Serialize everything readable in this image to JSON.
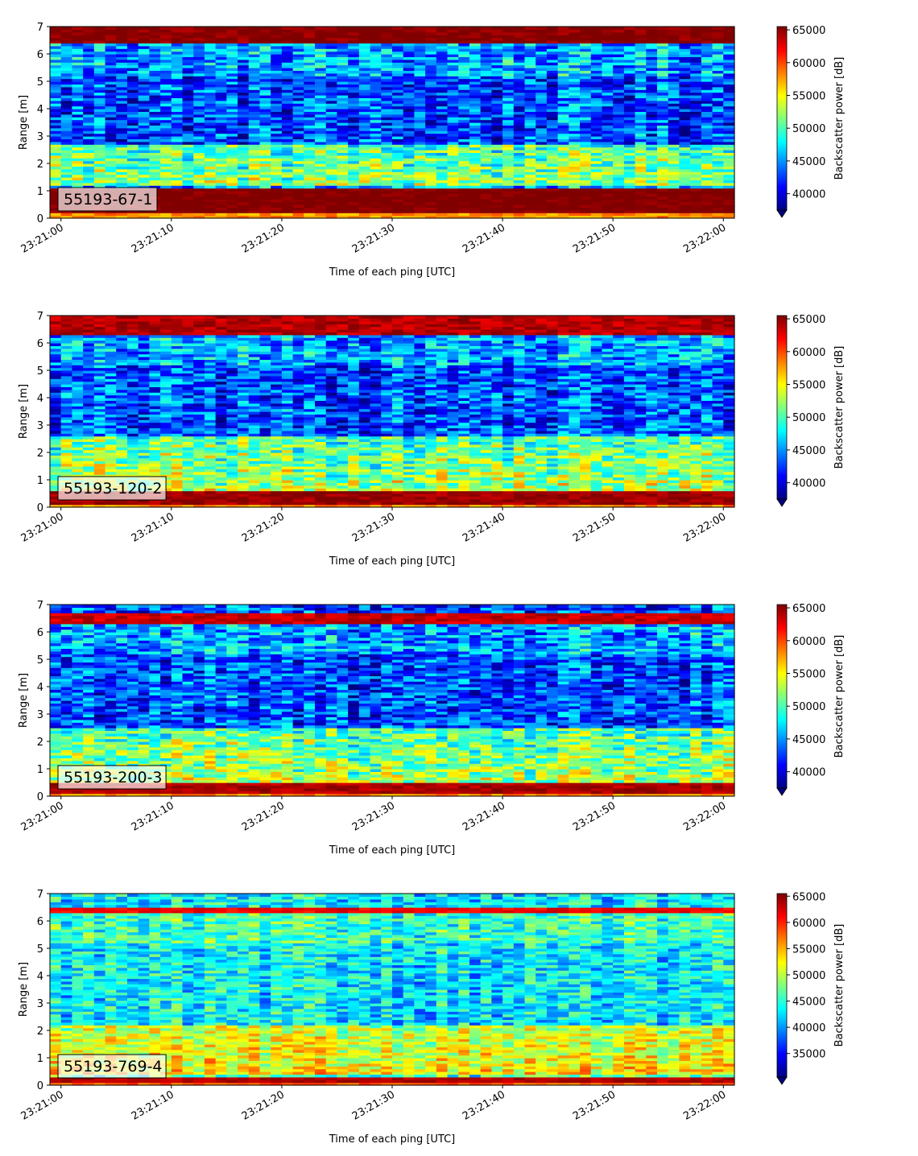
{
  "chart_data": [
    {
      "type": "heatmap",
      "panel_label": "55193-67-1",
      "xlabel": "Time of each ping [UTC]",
      "ylabel": "Range [m]",
      "x_ticks": [
        "23:21:00",
        "23:21:10",
        "23:21:20",
        "23:21:30",
        "23:21:40",
        "23:21:50",
        "23:22:00"
      ],
      "x_range_seconds": [
        -1,
        61
      ],
      "ylim": [
        0,
        7
      ],
      "y_ticks": [
        0,
        1,
        2,
        3,
        4,
        5,
        6,
        7
      ],
      "colorbar": {
        "label": "Backscatter power [dB]",
        "ticks": [
          40000,
          45000,
          50000,
          55000,
          60000,
          65000
        ],
        "range": [
          37500,
          65500
        ],
        "extend": "min",
        "colormap": "jet"
      },
      "structure": {
        "bottom_band_m": [
          0.2,
          1.15
        ],
        "bottom_band_level": 65000,
        "top_band_m": [
          6.4,
          7.0
        ],
        "top_band_level": 65000,
        "bright_region_m": [
          1.2,
          2.7
        ]
      }
    },
    {
      "type": "heatmap",
      "panel_label": "55193-120-2",
      "xlabel": "Time of each ping [UTC]",
      "ylabel": "Range [m]",
      "x_ticks": [
        "23:21:00",
        "23:21:10",
        "23:21:20",
        "23:21:30",
        "23:21:40",
        "23:21:50",
        "23:22:00"
      ],
      "x_range_seconds": [
        -1,
        61
      ],
      "ylim": [
        0,
        7
      ],
      "y_ticks": [
        0,
        1,
        2,
        3,
        4,
        5,
        6,
        7
      ],
      "colorbar": {
        "label": "Backscatter power [dB]",
        "ticks": [
          40000,
          45000,
          50000,
          55000,
          60000,
          65000
        ],
        "range": [
          37500,
          65500
        ],
        "extend": "min",
        "colormap": "jet"
      },
      "structure": {
        "bottom_band_m": [
          0.15,
          0.6
        ],
        "bottom_band_level": 64000,
        "top_band_m": [
          6.3,
          7.0
        ],
        "top_band_level": 63500,
        "bright_region_m": [
          0.6,
          2.6
        ]
      }
    },
    {
      "type": "heatmap",
      "panel_label": "55193-200-3",
      "xlabel": "Time of each ping [UTC]",
      "ylabel": "Range [m]",
      "x_ticks": [
        "23:21:00",
        "23:21:10",
        "23:21:20",
        "23:21:30",
        "23:21:40",
        "23:21:50",
        "23:22:00"
      ],
      "x_range_seconds": [
        -1,
        61
      ],
      "ylim": [
        0,
        7
      ],
      "y_ticks": [
        0,
        1,
        2,
        3,
        4,
        5,
        6,
        7
      ],
      "colorbar": {
        "label": "Backscatter power [dB]",
        "ticks": [
          40000,
          45000,
          50000,
          55000,
          60000,
          65000
        ],
        "range": [
          37500,
          65500
        ],
        "extend": "min",
        "colormap": "jet"
      },
      "structure": {
        "bottom_band_m": [
          0.15,
          0.5
        ],
        "bottom_band_level": 63500,
        "top_band_m": [
          6.35,
          6.7
        ],
        "top_band_level": 63000,
        "bright_region_m": [
          0.5,
          2.5
        ]
      }
    },
    {
      "type": "heatmap",
      "panel_label": "55193-769-4",
      "xlabel": "Time of each ping [UTC]",
      "ylabel": "Range [m]",
      "x_ticks": [
        "23:21:00",
        "23:21:10",
        "23:21:20",
        "23:21:30",
        "23:21:40",
        "23:21:50",
        "23:22:00"
      ],
      "x_range_seconds": [
        -1,
        61
      ],
      "ylim": [
        0,
        7
      ],
      "y_ticks": [
        0,
        1,
        2,
        3,
        4,
        5,
        6,
        7
      ],
      "colorbar": {
        "label": "Backscatter power [dB]",
        "ticks": [
          35000,
          40000,
          45000,
          50000,
          55000,
          60000,
          65000
        ],
        "range": [
          30500,
          65500
        ],
        "extend": "min",
        "colormap": "jet"
      },
      "structure": {
        "bottom_band_m": [
          0.15,
          0.35
        ],
        "bottom_band_level": 63000,
        "top_band_m": [
          6.35,
          6.55
        ],
        "top_band_level": 61000,
        "bright_region_m": [
          0.4,
          2.2
        ]
      }
    }
  ]
}
